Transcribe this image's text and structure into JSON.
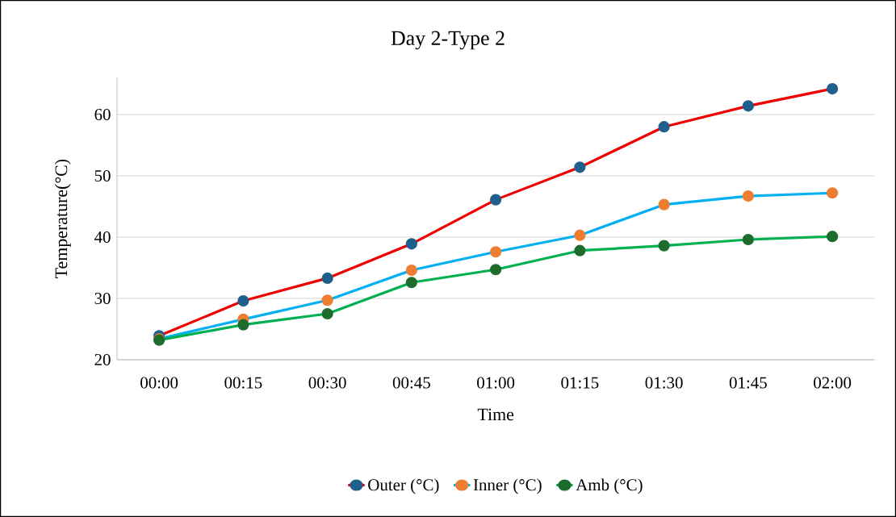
{
  "chart_data": {
    "type": "line",
    "title": "Day 2-Type 2",
    "xlabel": "Time",
    "ylabel": "Temperature(°C)",
    "categories": [
      "00:00",
      "00:15",
      "00:30",
      "00:45",
      "01:00",
      "01:15",
      "01:30",
      "01:45",
      "02:00"
    ],
    "series": [
      {
        "name": "Outer (°C)",
        "color": "#ee0000",
        "colors": [
          "#1f5f8b",
          "#1f5f8b",
          "#1f5f8b",
          "#1f5f8b",
          "#1f5f8b",
          "#1f5f8b",
          "#1f5f8b",
          "#1f5f8b",
          "#1f5f8b"
        ],
        "values": [
          23.9,
          29.6,
          33.3,
          38.9,
          46.1,
          51.4,
          58.0,
          61.4,
          64.2
        ]
      },
      {
        "name": "Inner (°C)",
        "color": "#00b0f0",
        "colors": [
          "#ed7d31",
          "#ed7d31",
          "#ed7d31",
          "#ed7d31",
          "#ed7d31",
          "#ed7d31",
          "#ed7d31",
          "#ed7d31",
          "#ed7d31"
        ],
        "values": [
          23.4,
          26.6,
          29.7,
          34.6,
          37.6,
          40.3,
          45.3,
          46.7,
          47.2
        ]
      },
      {
        "name": "Amb (°C)",
        "color": "#00b050",
        "colors": [
          "#1e6b2e",
          "#1e6b2e",
          "#1e6b2e",
          "#1e6b2e",
          "#1e6b2e",
          "#1e6b2e",
          "#1e6b2e",
          "#1e6b2e",
          "#1e6b2e"
        ],
        "values": [
          23.2,
          25.7,
          27.5,
          32.6,
          34.7,
          37.8,
          38.6,
          39.6,
          40.1
        ]
      }
    ],
    "ylim": [
      20,
      66
    ],
    "yticks": [
      20,
      30,
      40,
      50,
      60
    ],
    "grid": "y",
    "legend": "bottom",
    "marker": "circle",
    "line_style": "solid"
  }
}
